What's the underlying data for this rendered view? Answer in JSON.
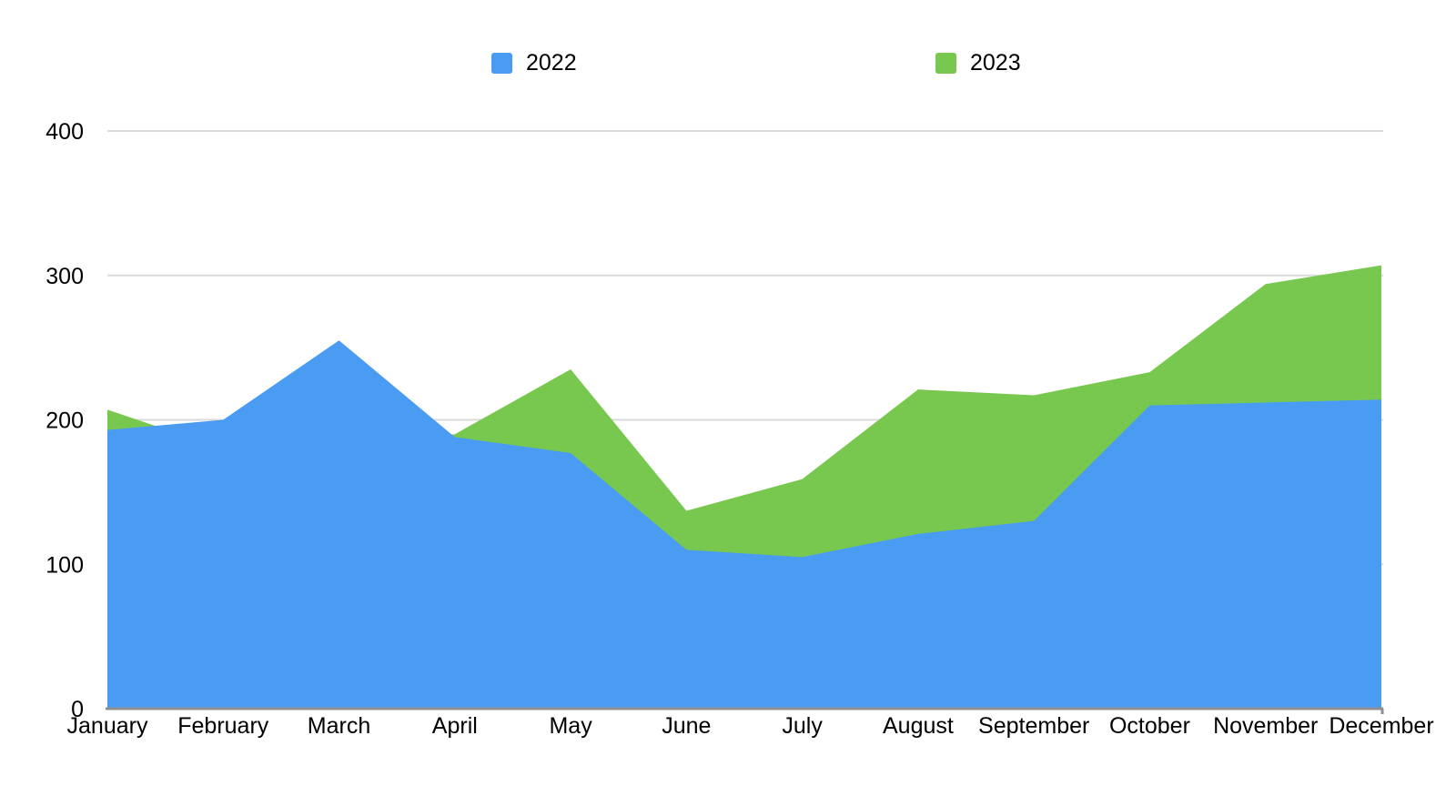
{
  "legend": {
    "items": [
      {
        "label": "2022",
        "color": "#4A9CF3"
      },
      {
        "label": "2023",
        "color": "#78C84F"
      }
    ]
  },
  "chart_data": {
    "type": "area",
    "mode": "overlapping",
    "title": "",
    "xlabel": "",
    "ylabel": "",
    "categories": [
      "January",
      "February",
      "March",
      "April",
      "May",
      "June",
      "July",
      "August",
      "September",
      "October",
      "November",
      "December"
    ],
    "series": [
      {
        "name": "2022",
        "color": "#4A9CF3",
        "values": [
          193,
          200,
          255,
          188,
          177,
          110,
          105,
          121,
          130,
          210,
          212,
          214
        ]
      },
      {
        "name": "2023",
        "color": "#78C84F",
        "values": [
          207,
          180,
          185,
          190,
          235,
          137,
          159,
          221,
          217,
          233,
          294,
          307
        ]
      }
    ],
    "ylim": [
      0,
      400
    ],
    "yticks": [
      0,
      100,
      200,
      300,
      400
    ],
    "grid": "horizontal",
    "legend_position": "top"
  },
  "colors": {
    "background": "#FFFFFF",
    "gridline": "#DADADA",
    "axis_line": "#8F8F8F",
    "text": "#000000"
  }
}
